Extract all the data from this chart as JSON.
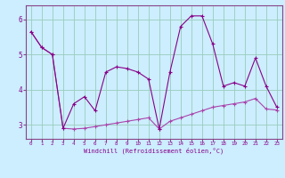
{
  "xlabel": "Windchill (Refroidissement éolien,°C)",
  "bg_color": "#cceeff",
  "grid_color": "#99ccbb",
  "line_color1": "#880088",
  "line_color2": "#aa44aa",
  "spine_color": "#884488",
  "xlim": [
    -0.5,
    23.5
  ],
  "ylim": [
    2.6,
    6.4
  ],
  "yticks": [
    3,
    4,
    5,
    6
  ],
  "xticks": [
    0,
    1,
    2,
    3,
    4,
    5,
    6,
    7,
    8,
    9,
    10,
    11,
    12,
    13,
    14,
    15,
    16,
    17,
    18,
    19,
    20,
    21,
    22,
    23
  ],
  "series1_x": [
    0,
    1,
    2,
    3,
    4,
    5,
    6,
    7,
    8,
    9,
    10,
    11,
    12,
    13,
    14,
    15,
    16,
    17,
    18,
    19,
    20,
    21,
    22,
    23
  ],
  "series1_y": [
    5.65,
    5.2,
    5.0,
    2.9,
    3.6,
    3.8,
    3.4,
    4.5,
    4.65,
    4.6,
    4.5,
    4.3,
    2.88,
    4.5,
    5.8,
    6.1,
    6.1,
    5.3,
    4.1,
    4.2,
    4.1,
    4.9,
    4.1,
    3.5
  ],
  "series2_x": [
    0,
    1,
    2,
    3,
    4,
    5,
    6,
    7,
    8,
    9,
    10,
    11,
    12,
    13,
    14,
    15,
    16,
    17,
    18,
    19,
    20,
    21,
    22,
    23
  ],
  "series2_y": [
    5.65,
    5.2,
    5.0,
    2.9,
    2.88,
    2.9,
    2.95,
    3.0,
    3.05,
    3.1,
    3.15,
    3.2,
    2.88,
    3.1,
    3.2,
    3.3,
    3.4,
    3.5,
    3.55,
    3.6,
    3.65,
    3.75,
    3.45,
    3.42
  ]
}
